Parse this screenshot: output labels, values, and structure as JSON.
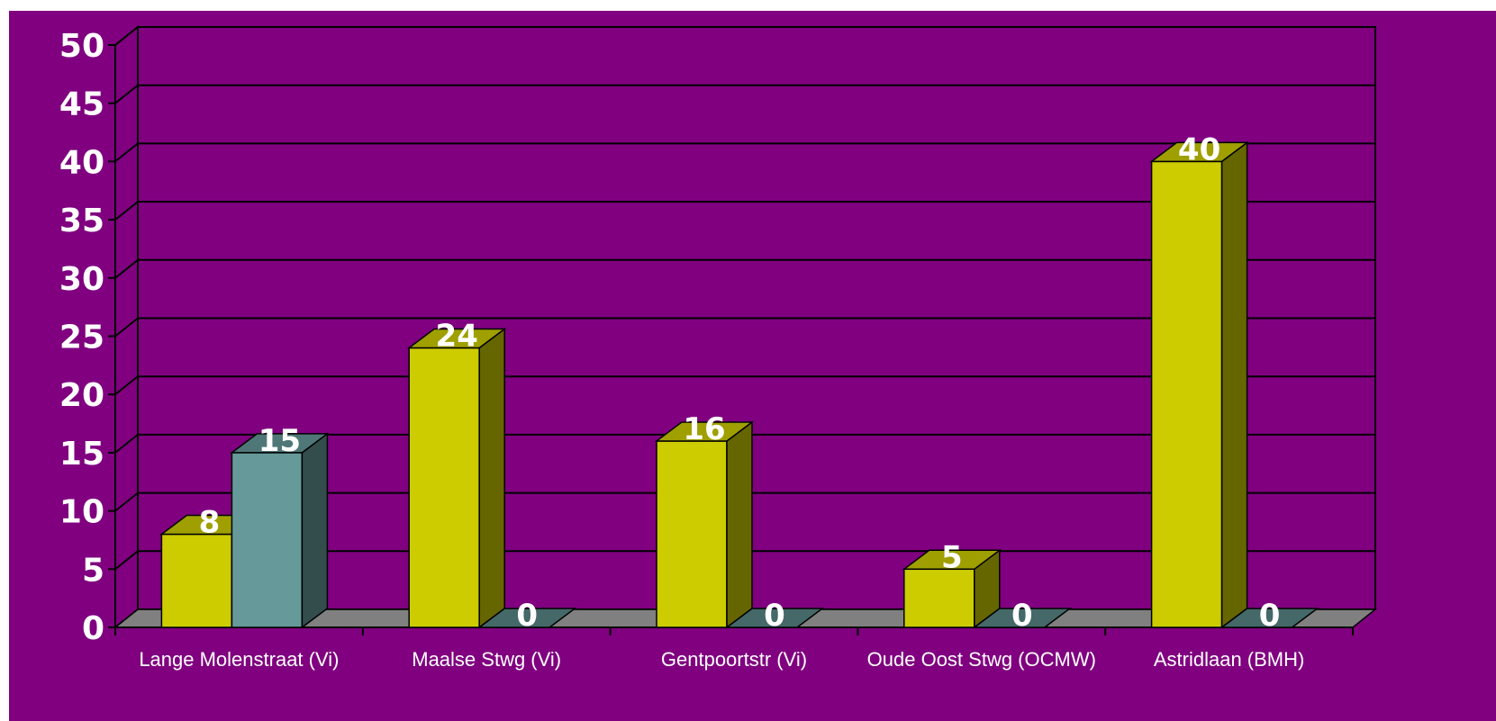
{
  "chart_data": {
    "type": "bar",
    "title": "",
    "xlabel": "",
    "ylabel": "",
    "categories": [
      "Lange Molenstraat (Vi)",
      "Maalse Stwg (Vi)",
      "Gentpoortstr (Vi)",
      "Oude Oost Stwg (OCMW)",
      "Astridlaan (BMH)"
    ],
    "series": [
      {
        "values": [
          8,
          24,
          16,
          5,
          40
        ],
        "color": "#cccc00"
      },
      {
        "values": [
          15,
          0,
          0,
          0,
          0
        ],
        "color": "#669999"
      }
    ],
    "ylim": [
      0,
      50
    ],
    "yticks": [
      "0",
      "5",
      "10",
      "15",
      "20",
      "25",
      "30",
      "35",
      "40",
      "45",
      "50"
    ],
    "grid": true,
    "three_d": true,
    "legend": "none",
    "background_color": "#800080",
    "floor_color": "#808080"
  }
}
